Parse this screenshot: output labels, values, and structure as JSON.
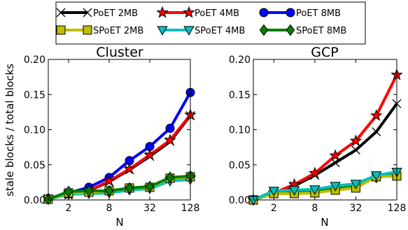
{
  "chart_data": [
    {
      "type": "line",
      "title": "Cluster",
      "xlabel": "N",
      "ylabel": "stale blocks / total blocks",
      "x_scale": "log2",
      "x": [
        1,
        2,
        4,
        8,
        16,
        32,
        64,
        128
      ],
      "x_ticks": [
        2,
        8,
        32,
        128
      ],
      "x_tick_labels": [
        "2",
        "8",
        "32",
        "128"
      ],
      "xlim": [
        1,
        128
      ],
      "ylim": [
        0,
        0.2
      ],
      "y_ticks": [
        0,
        0.05,
        0.1,
        0.15,
        0.2
      ],
      "y_tick_labels": [
        "0.00",
        "0.05",
        "0.10",
        "0.15",
        "0.20"
      ],
      "series": [
        {
          "name": "PoET 2MB",
          "values": [
            0.002,
            0.008,
            0.013,
            0.026,
            0.043,
            0.062,
            0.083,
            0.12
          ]
        },
        {
          "name": "PoET 4MB",
          "values": [
            0.002,
            0.008,
            0.013,
            0.027,
            0.044,
            0.064,
            0.085,
            0.121
          ]
        },
        {
          "name": "PoET 8MB",
          "values": [
            0.002,
            0.01,
            0.018,
            0.032,
            0.056,
            0.076,
            0.102,
            0.153
          ]
        },
        {
          "name": "SPoET 2MB",
          "values": [
            0.001,
            0.01,
            0.011,
            0.013,
            0.017,
            0.018,
            0.031,
            0.033
          ]
        },
        {
          "name": "SPoET 4MB",
          "values": [
            0.001,
            0.008,
            0.009,
            0.01,
            0.014,
            0.016,
            0.027,
            0.029
          ]
        },
        {
          "name": "SPoET 8MB",
          "values": [
            0.001,
            0.012,
            0.013,
            0.013,
            0.017,
            0.019,
            0.032,
            0.034
          ]
        }
      ]
    },
    {
      "type": "line",
      "title": "GCP",
      "xlabel": "N",
      "ylabel": "",
      "x_scale": "log2",
      "x": [
        1,
        2,
        4,
        8,
        16,
        32,
        64,
        128
      ],
      "x_ticks": [
        2,
        8,
        32,
        128
      ],
      "x_tick_labels": [
        "2",
        "8",
        "32",
        "128"
      ],
      "xlim": [
        1,
        128
      ],
      "ylim": [
        0,
        0.2
      ],
      "y_ticks": [
        0,
        0.05,
        0.1,
        0.15,
        0.2
      ],
      "y_tick_labels": [
        "0.00",
        "0.05",
        "0.10",
        "0.15",
        "0.20"
      ],
      "series": [
        {
          "name": "PoET 2MB",
          "values": [
            0.0,
            0.009,
            0.02,
            0.035,
            0.053,
            0.071,
            0.097,
            0.137
          ]
        },
        {
          "name": "PoET 4MB",
          "values": [
            0.0,
            0.01,
            0.022,
            0.038,
            0.063,
            0.084,
            0.12,
            0.178
          ]
        },
        {
          "name": "PoET 8MB",
          "values": [
            0.0,
            0.01,
            0.021,
            0.037,
            0.059,
            0.079,
            0.11,
            0.159
          ]
        },
        {
          "name": "SPoET 2MB",
          "values": [
            0.0,
            0.009,
            0.009,
            0.01,
            0.014,
            0.017,
            0.033,
            0.034
          ]
        },
        {
          "name": "SPoET 4MB",
          "values": [
            0.0,
            0.013,
            0.014,
            0.015,
            0.02,
            0.023,
            0.035,
            0.04
          ]
        },
        {
          "name": "SPoET 8MB",
          "values": [
            0.0,
            0.01,
            0.011,
            0.012,
            0.016,
            0.019,
            0.032,
            0.036
          ]
        }
      ]
    }
  ],
  "legend": {
    "placement": "top",
    "columns": 3,
    "order": [
      "PoET 2MB",
      "PoET 4MB",
      "PoET 8MB",
      "SPoET 2MB",
      "SPoET 4MB",
      "SPoET 8MB"
    ]
  },
  "style": {
    "PoET 2MB": {
      "color": "#000000",
      "marker": "x"
    },
    "PoET 4MB": {
      "color": "#ff0000",
      "marker": "star"
    },
    "PoET 8MB": {
      "color": "#0000ff",
      "marker": "circle"
    },
    "SPoET 2MB": {
      "color": "#bfbf00",
      "marker": "square"
    },
    "SPoET 4MB": {
      "color": "#00bfbf",
      "marker": "triangle-down"
    },
    "SPoET 8MB": {
      "color": "#007f00",
      "marker": "diamond"
    }
  }
}
